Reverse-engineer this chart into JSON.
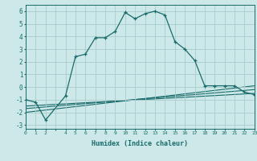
{
  "title": "",
  "xlabel": "Humidex (Indice chaleur)",
  "background_color": "#cce8e8",
  "grid_color": "#aacccc",
  "line_color": "#1a6b6b",
  "main_x": [
    0,
    1,
    2,
    4,
    5,
    6,
    7,
    8,
    9,
    10,
    11,
    12,
    13,
    14,
    15,
    16,
    17,
    18,
    19,
    20,
    21,
    22,
    23
  ],
  "main_y": [
    -1.0,
    -1.2,
    -2.6,
    -0.7,
    2.4,
    2.6,
    3.9,
    3.9,
    4.4,
    5.9,
    5.4,
    5.8,
    6.0,
    5.7,
    3.6,
    3.0,
    2.1,
    0.1,
    0.1,
    0.1,
    0.1,
    -0.4,
    -0.6
  ],
  "line1_x": [
    0,
    23
  ],
  "line1_y": [
    -1.5,
    -0.5
  ],
  "line2_x": [
    0,
    23
  ],
  "line2_y": [
    -1.7,
    -0.2
  ],
  "line3_x": [
    0,
    23
  ],
  "line3_y": [
    -2.0,
    0.1
  ],
  "xlim": [
    0,
    23
  ],
  "ylim": [
    -3.3,
    6.5
  ],
  "yticks": [
    -3,
    -2,
    -1,
    0,
    1,
    2,
    3,
    4,
    5,
    6
  ],
  "xticks": [
    0,
    1,
    2,
    4,
    5,
    6,
    7,
    8,
    9,
    10,
    11,
    12,
    13,
    14,
    15,
    16,
    17,
    18,
    19,
    20,
    21,
    22,
    23
  ]
}
